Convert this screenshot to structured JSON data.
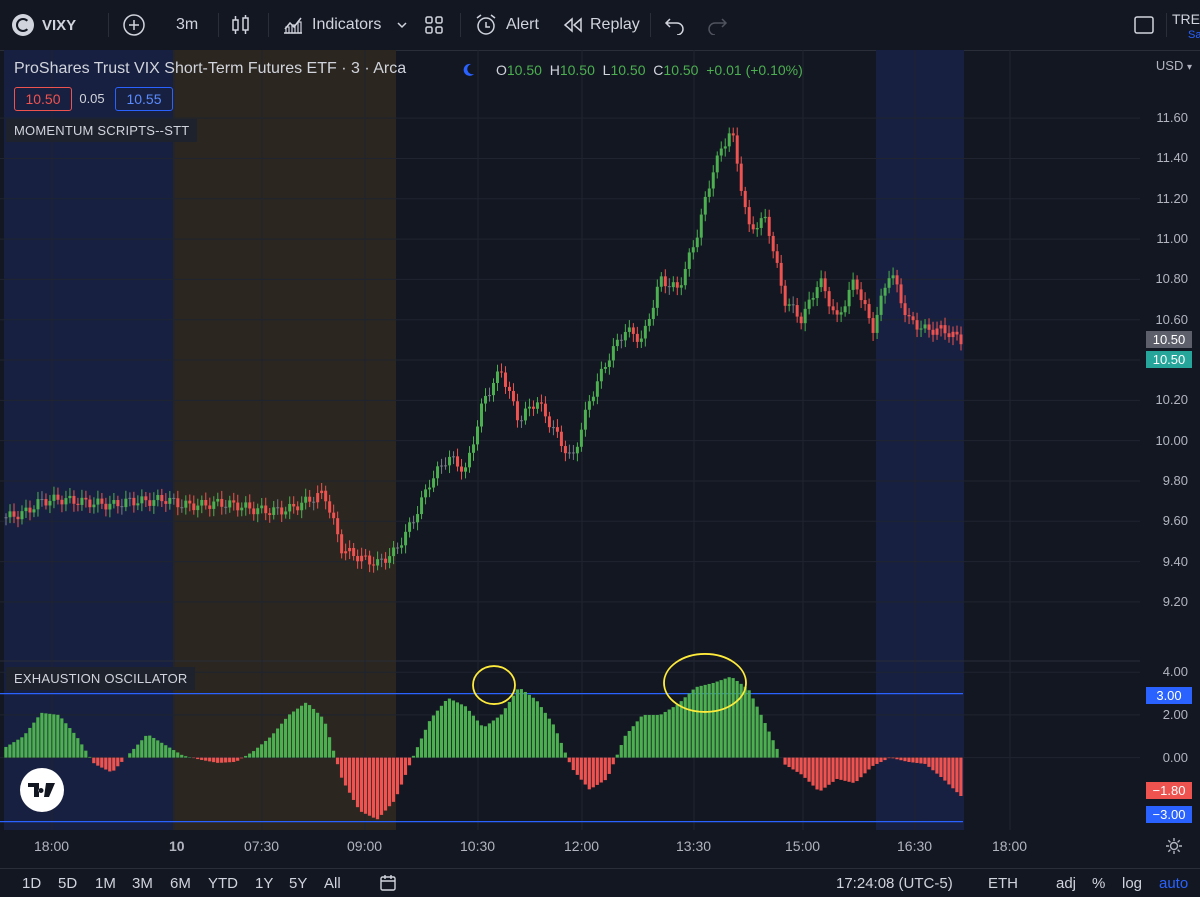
{
  "toolbar": {
    "symbol": "VIXY",
    "interval": "3m",
    "indicators_label": "Indicators",
    "alert_label": "Alert",
    "replay_label": "Replay",
    "right_text": "TRE",
    "right_subtext": "Sa"
  },
  "legend": {
    "title": "ProShares Trust VIX Short-Term Futures ETF · 3 · Arca",
    "o_label": "O",
    "o_value": "10.50",
    "h_label": "H",
    "h_value": "10.50",
    "l_label": "L",
    "l_value": "10.50",
    "c_label": "C",
    "c_value": "10.50",
    "change": "+0.01 (+0.10%)",
    "bid": "10.50",
    "spread": "0.05",
    "ask": "10.55"
  },
  "panels": {
    "momentum_label": "MOMENTUM SCRIPTS--STT",
    "oscillator_label": "EXHAUSTION OSCILLATOR"
  },
  "price_axis": {
    "currency": "USD",
    "ticks": [
      "11.60",
      "11.40",
      "11.20",
      "11.00",
      "10.80",
      "10.60",
      "10.40",
      "10.20",
      "10.00",
      "9.80",
      "9.60",
      "9.40",
      "9.20"
    ],
    "tag_gray": "10.50",
    "tag_green": "10.50"
  },
  "osc_axis": {
    "ticks": [
      "4.00",
      "2.00",
      "0.00"
    ],
    "tag_upper": "3.00",
    "tag_lower_red": "−1.80",
    "tag_lower_blue": "−3.00"
  },
  "time_axis": {
    "labels": [
      "18:00",
      "10",
      "07:30",
      "09:00",
      "10:30",
      "12:00",
      "13:30",
      "15:00",
      "16:30",
      "18:00"
    ]
  },
  "bottombar": {
    "ranges": [
      "1D",
      "5D",
      "1M",
      "3M",
      "6M",
      "YTD",
      "1Y",
      "5Y",
      "All"
    ],
    "clock": "17:24:08 (UTC-5)",
    "session": "ETH",
    "adj": "adj",
    "percent": "%",
    "log": "log",
    "auto": "auto"
  },
  "colors": {
    "up": "#4caf50",
    "down": "#ef5350",
    "neutral": "#787b86",
    "line_blue": "#2962ff",
    "highlight_yellow": "#ffeb3b"
  },
  "chart_data": {
    "type": "candlestick",
    "price_series": [
      {
        "t": "17:00",
        "p": 9.62
      },
      {
        "t": "17:30",
        "p": 9.64
      },
      {
        "t": "18:00",
        "p": 9.7
      },
      {
        "t": "18:30",
        "p": 9.71
      },
      {
        "t": "19:00",
        "p": 9.7
      },
      {
        "t": "19:30",
        "p": 9.69
      },
      {
        "t": "20:00",
        "p": 9.68
      },
      {
        "t": "20:30",
        "p": 9.7
      },
      {
        "t": "21:00",
        "p": 9.7
      },
      {
        "t": "21:30",
        "p": 9.71
      },
      {
        "t": "04:00",
        "p": 9.68
      },
      {
        "t": "05:00",
        "p": 9.68
      },
      {
        "t": "05:30",
        "p": 9.69
      },
      {
        "t": "06:00",
        "p": 9.68
      },
      {
        "t": "06:30",
        "p": 9.66
      },
      {
        "t": "07:00",
        "p": 9.65
      },
      {
        "t": "07:30",
        "p": 9.66
      },
      {
        "t": "08:00",
        "p": 9.7
      },
      {
        "t": "08:15",
        "p": 9.74
      },
      {
        "t": "08:30",
        "p": 9.46
      },
      {
        "t": "08:45",
        "p": 9.42
      },
      {
        "t": "09:00",
        "p": 9.39
      },
      {
        "t": "09:15",
        "p": 9.45
      },
      {
        "t": "09:30",
        "p": 9.6
      },
      {
        "t": "09:45",
        "p": 9.8
      },
      {
        "t": "10:00",
        "p": 9.92
      },
      {
        "t": "10:15",
        "p": 9.85
      },
      {
        "t": "10:30",
        "p": 10.2
      },
      {
        "t": "10:45",
        "p": 10.35
      },
      {
        "t": "11:00",
        "p": 10.1
      },
      {
        "t": "11:15",
        "p": 10.2
      },
      {
        "t": "11:30",
        "p": 10.05
      },
      {
        "t": "11:45",
        "p": 9.9
      },
      {
        "t": "12:00",
        "p": 10.2
      },
      {
        "t": "12:15",
        "p": 10.4
      },
      {
        "t": "12:30",
        "p": 10.55
      },
      {
        "t": "12:45",
        "p": 10.5
      },
      {
        "t": "13:00",
        "p": 10.8
      },
      {
        "t": "13:15",
        "p": 10.75
      },
      {
        "t": "13:30",
        "p": 11.0
      },
      {
        "t": "13:45",
        "p": 11.35
      },
      {
        "t": "14:00",
        "p": 11.55
      },
      {
        "t": "14:15",
        "p": 11.05
      },
      {
        "t": "14:30",
        "p": 11.1
      },
      {
        "t": "14:45",
        "p": 10.7
      },
      {
        "t": "15:00",
        "p": 10.6
      },
      {
        "t": "15:15",
        "p": 10.8
      },
      {
        "t": "15:30",
        "p": 10.6
      },
      {
        "t": "15:45",
        "p": 10.8
      },
      {
        "t": "16:00",
        "p": 10.55
      },
      {
        "t": "16:15",
        "p": 10.85
      },
      {
        "t": "16:30",
        "p": 10.6
      },
      {
        "t": "16:45",
        "p": 10.55
      },
      {
        "t": "17:00",
        "p": 10.55
      },
      {
        "t": "17:15",
        "p": 10.5
      }
    ],
    "oscillator_series": [
      {
        "t": "17:00",
        "v": 0.5
      },
      {
        "t": "17:30",
        "v": 1.0
      },
      {
        "t": "18:00",
        "v": 2.1
      },
      {
        "t": "18:30",
        "v": 2.0
      },
      {
        "t": "19:00",
        "v": 1.0
      },
      {
        "t": "19:30",
        "v": -0.3
      },
      {
        "t": "20:00",
        "v": -0.7
      },
      {
        "t": "20:30",
        "v": 0.2
      },
      {
        "t": "21:00",
        "v": 1.1
      },
      {
        "t": "21:30",
        "v": 0.6
      },
      {
        "t": "04:00",
        "v": 0.1
      },
      {
        "t": "05:00",
        "v": -0.1
      },
      {
        "t": "05:30",
        "v": -0.25
      },
      {
        "t": "06:00",
        "v": -0.2
      },
      {
        "t": "06:30",
        "v": 0.3
      },
      {
        "t": "07:00",
        "v": 1.0
      },
      {
        "t": "07:30",
        "v": 2.0
      },
      {
        "t": "08:00",
        "v": 2.6
      },
      {
        "t": "08:15",
        "v": 1.8
      },
      {
        "t": "08:30",
        "v": -1.0
      },
      {
        "t": "08:45",
        "v": -2.5
      },
      {
        "t": "09:00",
        "v": -2.9
      },
      {
        "t": "09:15",
        "v": -2.0
      },
      {
        "t": "09:30",
        "v": 0.0
      },
      {
        "t": "09:45",
        "v": 1.8
      },
      {
        "t": "10:00",
        "v": 2.8
      },
      {
        "t": "10:15",
        "v": 2.4
      },
      {
        "t": "10:30",
        "v": 1.4
      },
      {
        "t": "10:45",
        "v": 2.0
      },
      {
        "t": "11:00",
        "v": 3.3
      },
      {
        "t": "11:15",
        "v": 2.7
      },
      {
        "t": "11:30",
        "v": 1.5
      },
      {
        "t": "11:45",
        "v": -0.5
      },
      {
        "t": "12:00",
        "v": -1.5
      },
      {
        "t": "12:15",
        "v": -1.0
      },
      {
        "t": "12:30",
        "v": 1.0
      },
      {
        "t": "12:45",
        "v": 2.0
      },
      {
        "t": "13:00",
        "v": 2.0
      },
      {
        "t": "13:15",
        "v": 2.5
      },
      {
        "t": "13:30",
        "v": 3.3
      },
      {
        "t": "13:45",
        "v": 3.5
      },
      {
        "t": "14:00",
        "v": 3.8
      },
      {
        "t": "14:15",
        "v": 3.2
      },
      {
        "t": "14:30",
        "v": 1.5
      },
      {
        "t": "14:45",
        "v": -0.3
      },
      {
        "t": "15:00",
        "v": -0.8
      },
      {
        "t": "15:15",
        "v": -1.6
      },
      {
        "t": "15:30",
        "v": -1.0
      },
      {
        "t": "15:45",
        "v": -1.2
      },
      {
        "t": "16:00",
        "v": -0.4
      },
      {
        "t": "16:15",
        "v": 0.0
      },
      {
        "t": "16:30",
        "v": -0.2
      },
      {
        "t": "16:45",
        "v": -0.3
      },
      {
        "t": "17:00",
        "v": -1.0
      },
      {
        "t": "17:15",
        "v": -1.8
      }
    ],
    "price_ylim": [
      9.15,
      11.7
    ],
    "osc_ylim": [
      -3.3,
      4.2
    ],
    "osc_levels": [
      3.0,
      -3.0
    ],
    "xlabel": "",
    "ylabel": ""
  }
}
